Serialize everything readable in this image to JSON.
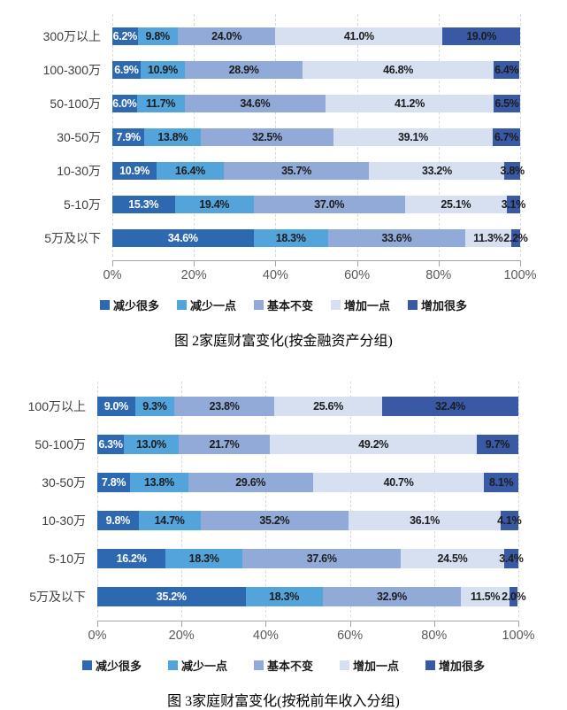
{
  "page_background": "#ffffff",
  "palette": {
    "decrease_a_lot": "#2E68B0",
    "decrease_a_little": "#54A4DC",
    "basically_unchanged": "#92AAD8",
    "increase_a_little": "#D6E0F1",
    "increase_a_lot": "#3A59A4",
    "gridline": "#d9d9d9",
    "axis_line": "#a6a6a6",
    "axis_label": "#595959",
    "category_label": "#404040"
  },
  "chart_data": [
    {
      "type": "bar",
      "variant": "horizontal-stacked-100pct",
      "caption": "图 2家庭财富变化(按金融资产分组)",
      "categories": [
        "300万以上",
        "100-300万",
        "50-100万",
        "30-50万",
        "10-30万",
        "5-10万",
        "5万及以下"
      ],
      "series": [
        {
          "name": "减少很多",
          "color": "#2E68B0",
          "label_color": "#ffffff",
          "values": [
            6.2,
            6.9,
            6.0,
            7.9,
            10.9,
            15.3,
            34.6
          ]
        },
        {
          "name": "减少一点",
          "color": "#54A4DC",
          "label_color": "#1c1c1c",
          "values": [
            9.8,
            10.9,
            11.7,
            13.8,
            16.4,
            19.4,
            18.3
          ]
        },
        {
          "name": "基本不变",
          "color": "#92AAD8",
          "label_color": "#1c1c1c",
          "values": [
            24.0,
            28.9,
            34.6,
            32.5,
            35.7,
            37.0,
            33.6
          ]
        },
        {
          "name": "增加一点",
          "color": "#D6E0F1",
          "label_color": "#1c1c1c",
          "values": [
            41.0,
            46.8,
            41.2,
            39.1,
            33.2,
            25.1,
            11.3
          ]
        },
        {
          "name": "增加很多",
          "color": "#3A59A4",
          "label_color": "#1c1c1c",
          "values": [
            19.0,
            6.4,
            6.5,
            6.7,
            3.8,
            3.1,
            2.2
          ]
        }
      ],
      "x_axis": {
        "min": 0,
        "max": 100,
        "ticks": [
          "0%",
          "20%",
          "40%",
          "60%",
          "80%",
          "100%"
        ]
      },
      "value_suffix": "%",
      "grid": "vertical-dashed",
      "legend_position": "bottom"
    },
    {
      "type": "bar",
      "variant": "horizontal-stacked-100pct",
      "caption": "图 3家庭财富变化(按税前年收入分组)",
      "categories": [
        "100万以上",
        "50-100万",
        "30-50万",
        "10-30万",
        "5-10万",
        "5万及以下"
      ],
      "series": [
        {
          "name": "减少很多",
          "color": "#2E68B0",
          "label_color": "#ffffff",
          "values": [
            9.0,
            6.3,
            7.8,
            9.8,
            16.2,
            35.2
          ]
        },
        {
          "name": "减少一点",
          "color": "#54A4DC",
          "label_color": "#1c1c1c",
          "values": [
            9.3,
            13.0,
            13.8,
            14.7,
            18.3,
            18.3
          ]
        },
        {
          "name": "基本不变",
          "color": "#92AAD8",
          "label_color": "#1c1c1c",
          "values": [
            23.8,
            21.7,
            29.6,
            35.2,
            37.6,
            32.9
          ]
        },
        {
          "name": "增加一点",
          "color": "#D6E0F1",
          "label_color": "#1c1c1c",
          "values": [
            25.6,
            49.2,
            40.7,
            36.1,
            24.5,
            11.5
          ]
        },
        {
          "name": "增加很多",
          "color": "#3A59A4",
          "label_color": "#1c1c1c",
          "values": [
            32.4,
            9.7,
            8.1,
            4.1,
            3.4,
            2.0
          ]
        }
      ],
      "x_axis": {
        "min": 0,
        "max": 100,
        "ticks": [
          "0%",
          "20%",
          "40%",
          "60%",
          "80%",
          "100%"
        ]
      },
      "value_suffix": "%",
      "grid": "vertical-dashed",
      "legend_position": "bottom"
    }
  ]
}
